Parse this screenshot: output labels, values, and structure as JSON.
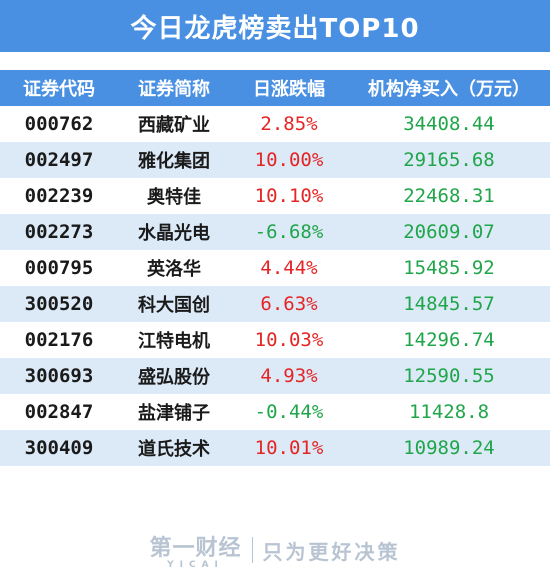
{
  "title": "今日龙虎榜卖出TOP10",
  "headers": {
    "code": "证券代码",
    "name": "证券简称",
    "change": "日涨跌幅",
    "net_buy": "机构净买入（万元）"
  },
  "rows": [
    {
      "code": "000762",
      "name": "西藏矿业",
      "change": "2.85%",
      "net_buy": "34408.44",
      "direction": "up"
    },
    {
      "code": "002497",
      "name": "雅化集团",
      "change": "10.00%",
      "net_buy": "29165.68",
      "direction": "up"
    },
    {
      "code": "002239",
      "name": "奥特佳",
      "change": "10.10%",
      "net_buy": "22468.31",
      "direction": "up"
    },
    {
      "code": "002273",
      "name": "水晶光电",
      "change": "-6.68%",
      "net_buy": "20609.07",
      "direction": "down"
    },
    {
      "code": "000795",
      "name": "英洛华",
      "change": "4.44%",
      "net_buy": "15485.92",
      "direction": "up"
    },
    {
      "code": "300520",
      "name": "科大国创",
      "change": "6.63%",
      "net_buy": "14845.57",
      "direction": "up"
    },
    {
      "code": "002176",
      "name": "江特电机",
      "change": "10.03%",
      "net_buy": "14296.74",
      "direction": "up"
    },
    {
      "code": "300693",
      "name": "盛弘股份",
      "change": "4.93%",
      "net_buy": "12590.55",
      "direction": "up"
    },
    {
      "code": "002847",
      "name": "盐津铺子",
      "change": "-0.44%",
      "net_buy": "11428.8",
      "direction": "down"
    },
    {
      "code": "300409",
      "name": "道氏技术",
      "change": "10.01%",
      "net_buy": "10989.24",
      "direction": "up"
    }
  ],
  "footer": {
    "logo_cn": "第一财经",
    "logo_en": "YICAI",
    "slogan": "只为更好决策"
  },
  "colors": {
    "accent": "#4a90e2",
    "alt_row": "#dce9f7",
    "up": "#e52525",
    "down": "#20a64a"
  }
}
